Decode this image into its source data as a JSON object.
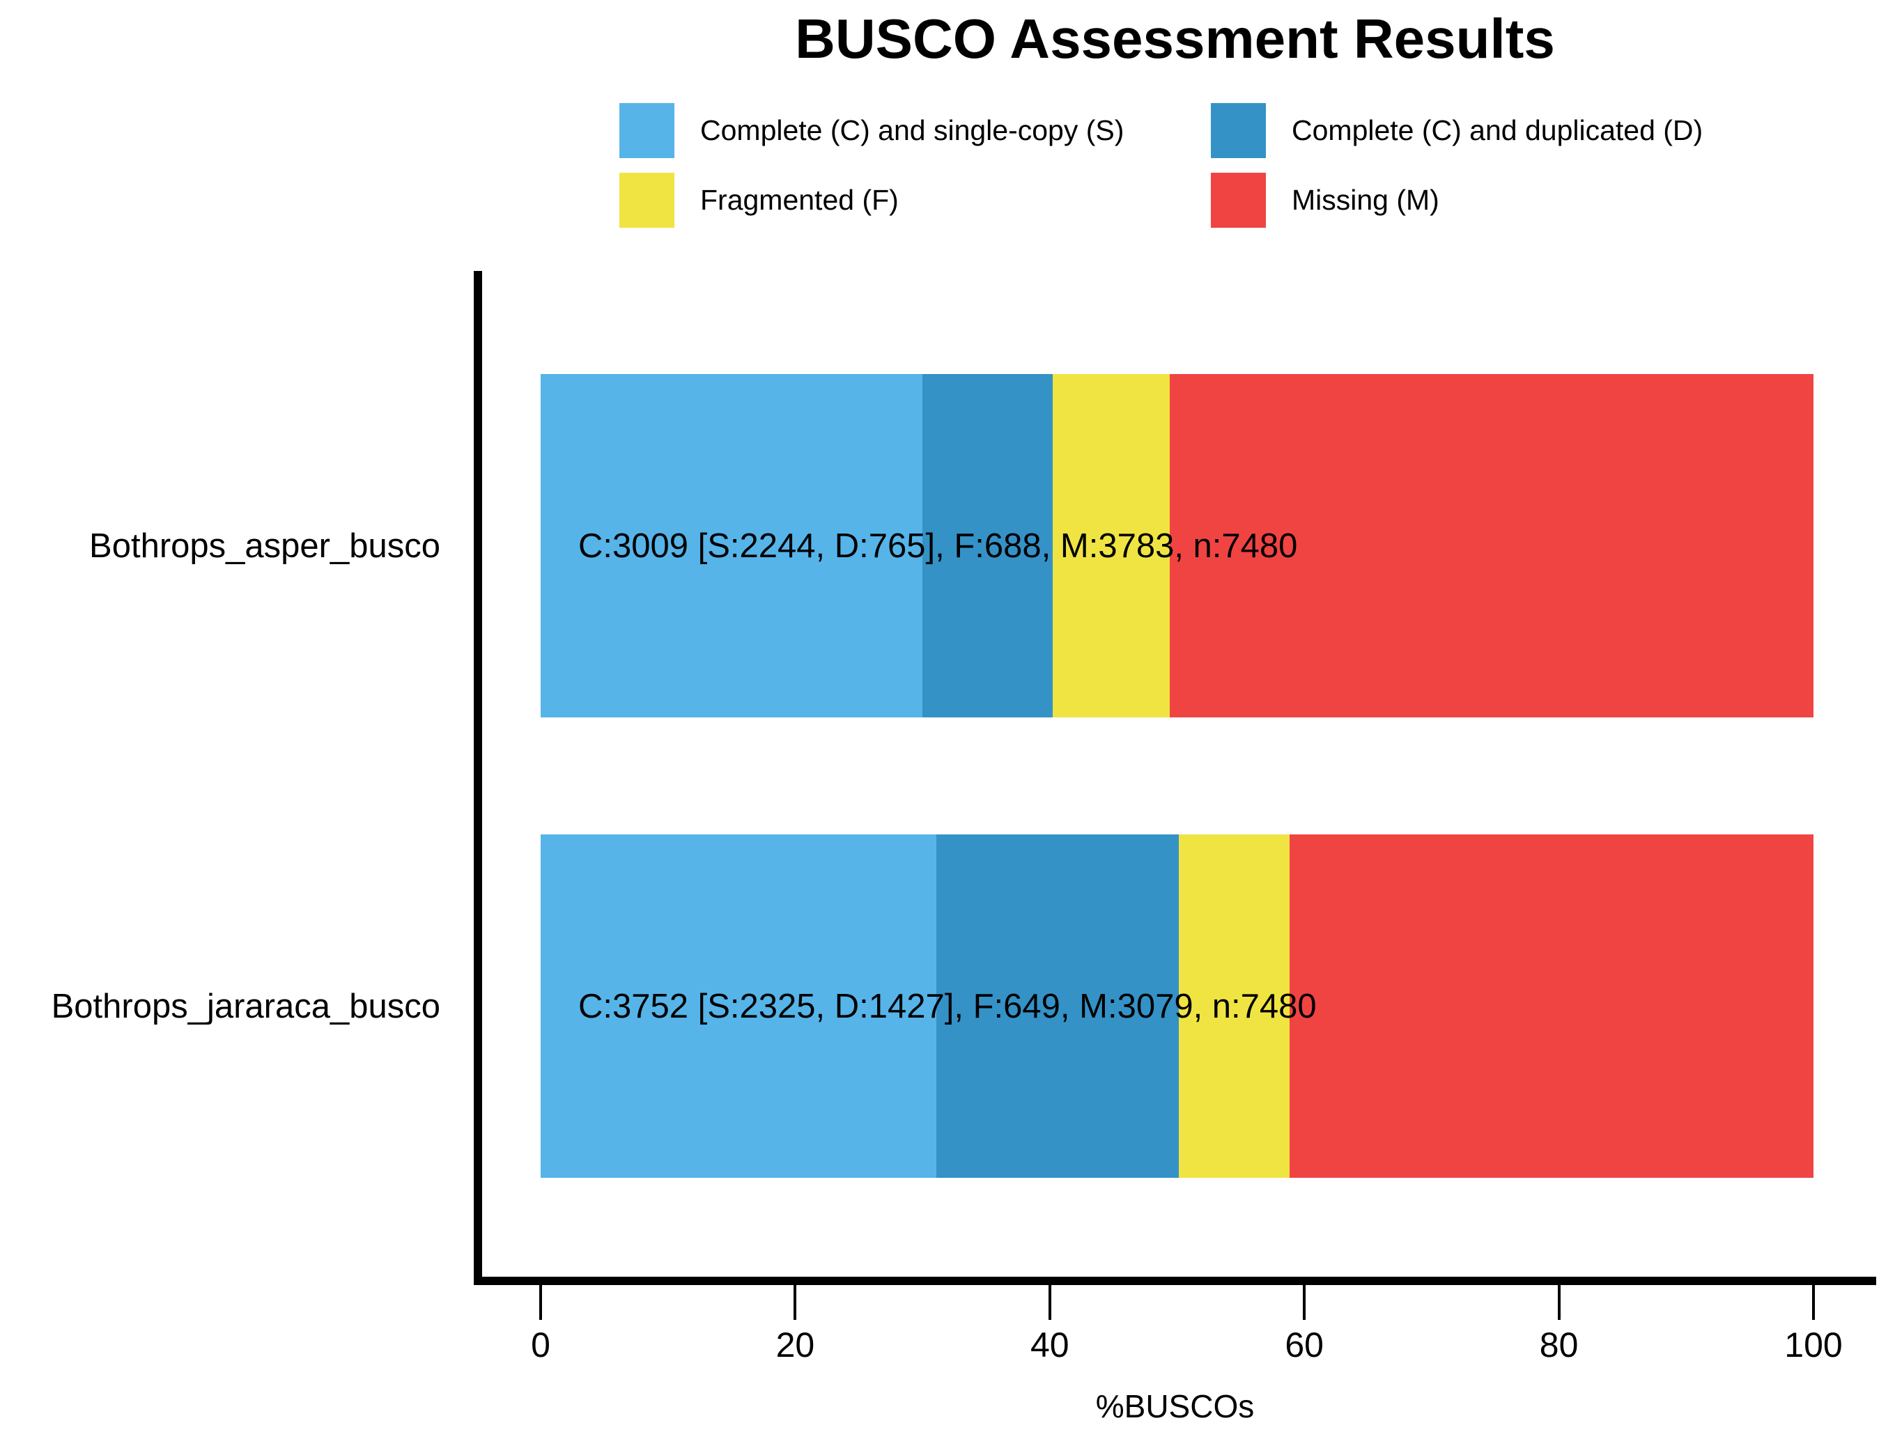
{
  "title": "BUSCO Assessment Results",
  "axis": {
    "xlabel": "%BUSCOs",
    "tick_labels": [
      "0",
      "20",
      "40",
      "60",
      "80",
      "100"
    ]
  },
  "legend": {
    "items": [
      {
        "label": "Complete (C) and single-copy (S)",
        "color": "#56B4E9"
      },
      {
        "label": "Complete (C) and duplicated (D)",
        "color": "#3492C7"
      },
      {
        "label": "Fragmented (F)",
        "color": "#F0E442"
      },
      {
        "label": "Missing (M)",
        "color": "#F04442"
      }
    ]
  },
  "chart_data": {
    "type": "bar",
    "orientation": "horizontal",
    "stacked": true,
    "title": "BUSCO Assessment Results",
    "xlabel": "%BUSCOs",
    "xlim": [
      0,
      100
    ],
    "xticks": [
      0,
      20,
      40,
      60,
      80,
      100
    ],
    "grid": false,
    "legend_position": "top",
    "n_buscos": 7480,
    "categories": [
      "Bothrops_asper_busco",
      "Bothrops_jararaca_busco"
    ],
    "series": [
      {
        "name": "Complete (C) and single-copy (S)",
        "color": "#56B4E9",
        "counts": [
          2244,
          2325
        ],
        "percent": [
          30.0,
          31.08
        ]
      },
      {
        "name": "Complete (C) and duplicated (D)",
        "color": "#3492C7",
        "counts": [
          765,
          1427
        ],
        "percent": [
          10.23,
          19.08
        ]
      },
      {
        "name": "Fragmented (F)",
        "color": "#F0E442",
        "counts": [
          688,
          649
        ],
        "percent": [
          9.2,
          8.68
        ]
      },
      {
        "name": "Missing (M)",
        "color": "#F04442",
        "counts": [
          3783,
          3079
        ],
        "percent": [
          50.57,
          41.16
        ]
      }
    ],
    "bar_labels": [
      "C:3009 [S:2244, D:765], F:688, M:3783, n:7480",
      "C:3752 [S:2325, D:1427], F:649, M:3079, n:7480"
    ]
  },
  "colors": {
    "axis": "#000000",
    "text": "#000000",
    "background": "#FFFFFF"
  }
}
